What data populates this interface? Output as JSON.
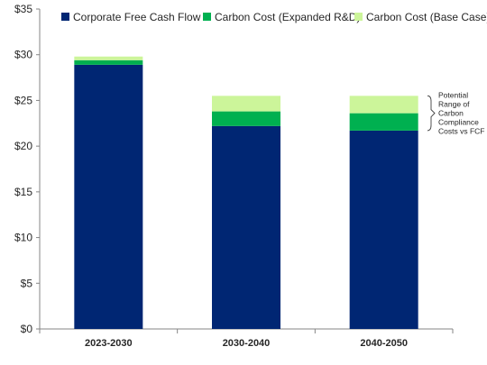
{
  "chart_data": {
    "type": "bar",
    "stacked": true,
    "categories": [
      "2023-2030",
      "2030-2040",
      "2040-2050"
    ],
    "series": [
      {
        "name": "Corporate Free Cash Flow",
        "color": "#002673",
        "values": [
          28.9,
          22.2,
          21.7
        ]
      },
      {
        "name": "Carbon Cost (Expanded R&D)",
        "color": "#00B050",
        "values": [
          0.5,
          1.6,
          1.9
        ]
      },
      {
        "name": "Carbon Cost (Base Case)",
        "color": "#CCF59A",
        "values": [
          0.4,
          1.7,
          1.9
        ]
      }
    ],
    "y_ticks": [
      "$0",
      "$5",
      "$10",
      "$15",
      "$20",
      "$25",
      "$30",
      "$35"
    ],
    "ylim": [
      0,
      35
    ],
    "ystep": 5,
    "grid": false,
    "legend_position": "top",
    "annotation": {
      "lines": [
        "Potential",
        "Range of",
        "Carbon",
        "Compliance",
        "Costs vs FCF"
      ],
      "bracket_range": [
        21.7,
        25.5
      ]
    }
  }
}
